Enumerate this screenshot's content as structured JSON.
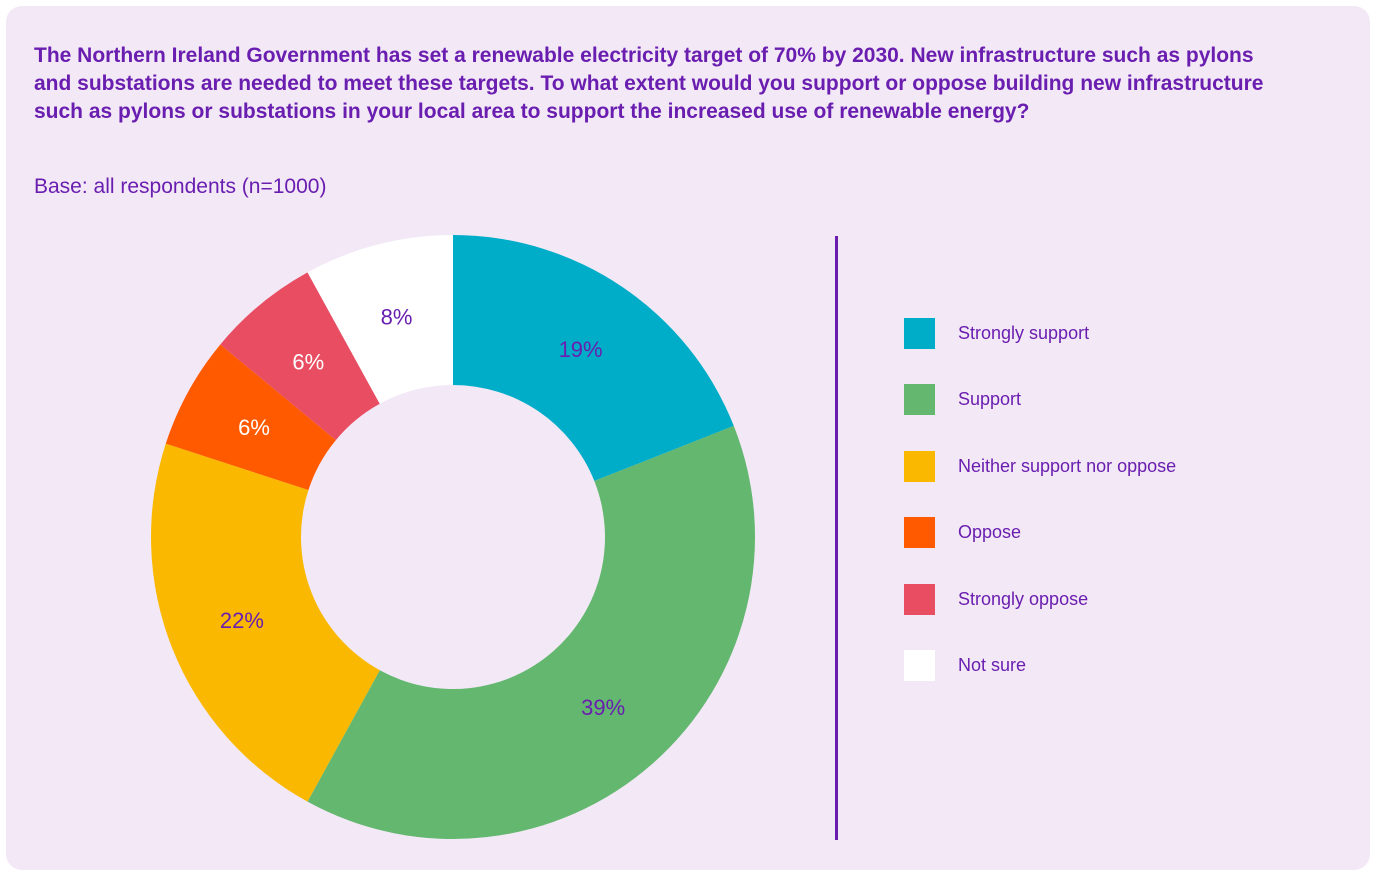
{
  "chart_data": {
    "type": "pie",
    "title": "The Northern Ireland Government has set a renewable electricity target of 70% by 2030. New infrastructure such as pylons and substations are needed to meet these targets. To what extent would you support or oppose building new infrastructure such as pylons or substations in your local area to support the increased use of renewable energy?",
    "subtitle": "Base: all respondents (n=1000)",
    "legend_position": "right",
    "slices": [
      {
        "label": "Strongly support",
        "value": 19,
        "value_label": "19%",
        "color": "#00adc8",
        "label_color": "#6a1eb0"
      },
      {
        "label": "Support",
        "value": 39,
        "value_label": "39%",
        "color": "#63b76f",
        "label_color": "#6a1eb0"
      },
      {
        "label": "Neither support nor oppose",
        "value": 22,
        "value_label": "22%",
        "color": "#fab900",
        "label_color": "#6a1eb0"
      },
      {
        "label": "Oppose",
        "value": 6,
        "value_label": "6%",
        "color": "#ff5a00",
        "label_color": "#ffffff"
      },
      {
        "label": "Strongly oppose",
        "value": 6,
        "value_label": "6%",
        "color": "#e84d62",
        "label_color": "#ffffff"
      },
      {
        "label": "Not sure",
        "value": 8,
        "value_label": "8%",
        "color": "#ffffff",
        "label_color": "#6a1eb0"
      }
    ]
  },
  "colors": {
    "panel_background": "#f2e8f6",
    "text": "#6a1eb0"
  }
}
